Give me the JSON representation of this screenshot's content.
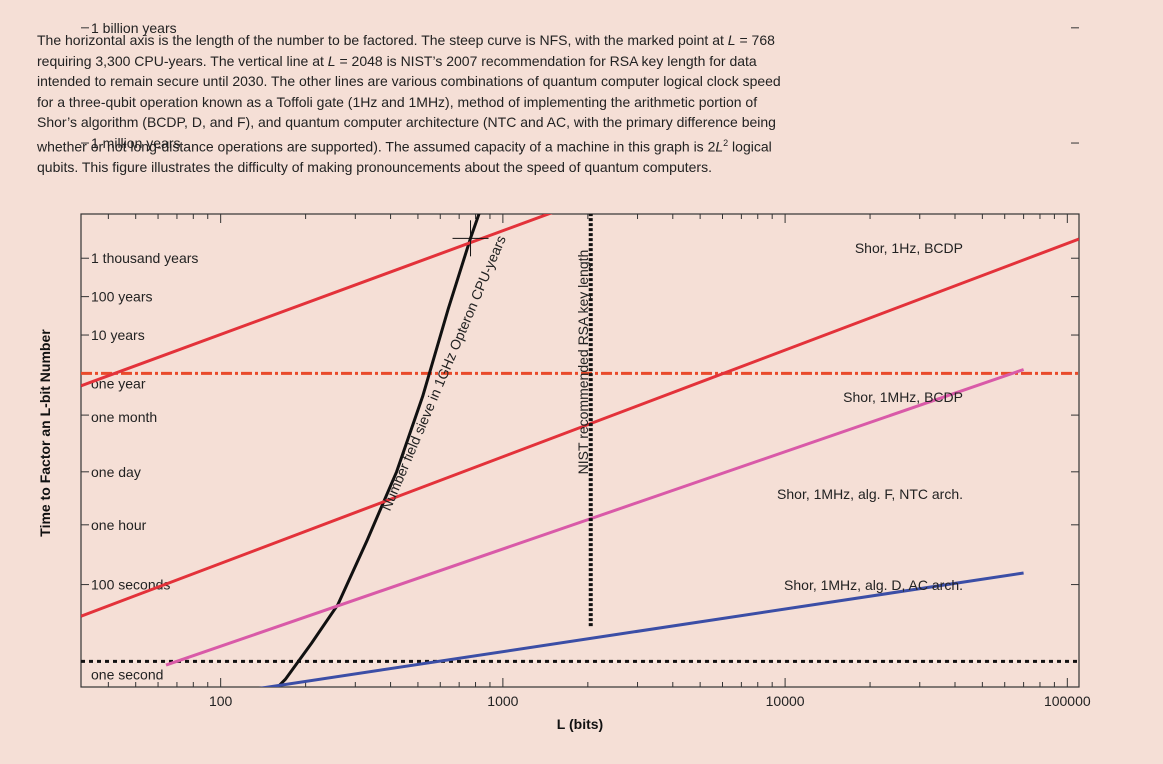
{
  "caption": {
    "p1": "The horizontal axis is the length of the number to be factored. The steep curve is NFS, with the marked point at ",
    "v1": "L",
    "p2": " = 768 requiring 3,300 CPU-years. The vertical line at ",
    "v2": "L",
    "p3": " = 2048 is NIST’s 2007 recommendation for RSA key length for data intended to remain secure until 2030. The other lines are various combinations of quantum computer logical clock speed for a three-qubit operation known as a Toffoli gate (1Hz and 1MHz), method of implementing the arithmetic portion of Shor’s algorithm (BCDP, D, and F), and quantum computer architecture (NTC and AC, with the primary difference being whether or not long-distance operations are supported). The assumed capacity of a machine in this graph is 2",
    "v3": "L",
    "sup": "2",
    "p4": " logical qubits. This figure illustrates the difficulty of making pronouncements about the speed of quantum computers."
  },
  "chart_data": {
    "type": "line",
    "xlabel": "L (bits)",
    "ylabel": "Time to Factor an L-bit Number",
    "x_scale": "log",
    "y_scale": "log",
    "xlim": [
      32,
      110000
    ],
    "x_ticks": [
      {
        "value": 100,
        "label": "100"
      },
      {
        "value": 1000,
        "label": "1000"
      },
      {
        "value": 10000,
        "label": "10000"
      },
      {
        "value": 100000,
        "label": "100000"
      }
    ],
    "y_ticks": [
      {
        "seconds": 1,
        "label": "one second"
      },
      {
        "seconds": 100,
        "label": "100 seconds"
      },
      {
        "seconds": 3600,
        "label": "one hour"
      },
      {
        "seconds": 86400,
        "label": "one day"
      },
      {
        "seconds": 2592000,
        "label": "one month"
      },
      {
        "seconds": 31536000,
        "label": "one year"
      },
      {
        "seconds": 315360000,
        "label": "10 years"
      },
      {
        "seconds": 3153600000,
        "label": "100 years"
      },
      {
        "seconds": 31536000000,
        "label": "1 thousand years"
      },
      {
        "seconds": 31536000000000,
        "label": "1 million years"
      },
      {
        "seconds": 31536000000000000,
        "label": "1 billion years"
      }
    ],
    "series": [
      {
        "name": "Number field sieve in 1GHz Opteron CPU-years",
        "color": "#111111",
        "style": "solid",
        "points": [
          [
            144,
            0.1
          ],
          [
            170,
            0.35
          ],
          [
            210,
            3
          ],
          [
            260,
            30
          ],
          [
            330,
            1400
          ],
          [
            420,
            86400
          ],
          [
            520,
            8000000
          ],
          [
            640,
            1500000000.0
          ],
          [
            768,
            104000000000.0
          ],
          [
            900,
            3000000000000.0
          ],
          [
            1100,
            200000000000000.0
          ],
          [
            1300,
            5000000000000000.0
          ],
          [
            1450,
            5e+16
          ]
        ]
      },
      {
        "name": "Shor, 1Hz, BCDP",
        "color": "#e3323a",
        "style": "solid",
        "points": [
          [
            32,
            15000000
          ],
          [
            110000,
            5.4e+16
          ]
        ]
      },
      {
        "name": "Shor, 1MHz, BCDP",
        "color": "#e3323a",
        "style": "solid",
        "points": [
          [
            32,
            15
          ],
          [
            110000,
            100000000000.0
          ]
        ]
      },
      {
        "name": "Shor, 1MHz, alg. F, NTC arch.",
        "color": "#d95aa8",
        "style": "solid",
        "points": [
          [
            64,
            0.8
          ],
          [
            70000,
            40000000
          ]
        ]
      },
      {
        "name": "Shor, 1MHz, alg. D, AC arch.",
        "color": "#3b4ea6",
        "style": "solid",
        "points": [
          [
            64,
            0.085
          ],
          [
            70000,
            200
          ]
        ]
      },
      {
        "name": "NIST recommended RSA key length",
        "color": "#111111",
        "style": "dashed-vertical",
        "x": 2048,
        "y_range": [
          8,
          3.1e+16
        ]
      }
    ],
    "reference_lines": [
      {
        "kind": "horizontal",
        "seconds": 31536000,
        "color": "#e94a2a",
        "style": "dash-dot"
      },
      {
        "kind": "horizontal",
        "seconds": 1,
        "color": "#111111",
        "style": "dotted"
      }
    ],
    "annotations": [
      {
        "type": "marker",
        "x": 768,
        "seconds": 104000000000.0
      }
    ],
    "grid": false,
    "legend": "none"
  }
}
